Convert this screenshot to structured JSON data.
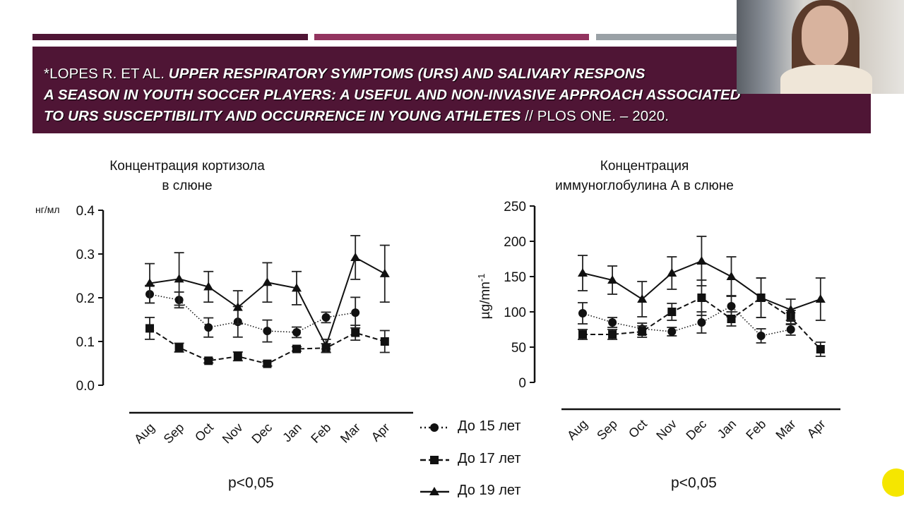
{
  "slide": {
    "accent_colors": [
      "#4f1535",
      "#92345f",
      "#9aa1a6"
    ],
    "citation": {
      "author": "*LOPES R. ET AL. ",
      "title_line1": "UPPER RESPIRATORY SYMPTOMS (URS) AND SALIVARY RESPONS",
      "title_line2": "A SEASON IN YOUTH SOCCER PLAYERS: A USEFUL AND NON-INVASIVE APPROACH ASSOCIATED",
      "title_line3": "TO URS SUSCEPTIBILITY AND OCCURRENCE IN YOUNG ATHLETES",
      "source": " // PLOS ONE. – 2020."
    },
    "left_title_1": "Концентрация кортизола",
    "left_title_2": "в слюне",
    "right_title_1": "Концентрация",
    "right_title_2": "иммуноглобулина А в слюне",
    "left_p": "p<0,05",
    "right_p": "p<0,05",
    "legend": [
      "До 15 лет",
      "До 17 лет",
      "До 19 лет"
    ]
  },
  "chart_data": [
    {
      "type": "line",
      "title": "Концентрация кортизола в слюне",
      "ylabel": "нг/мл",
      "ylim": [
        0,
        0.4
      ],
      "yticks": [
        "0.0",
        "0.1",
        "0.2",
        "0.3",
        "0.4"
      ],
      "categories": [
        "Aug",
        "Sep",
        "Oct",
        "Nov",
        "Dec",
        "Jan",
        "Feb",
        "Mar",
        "Apr"
      ],
      "series": [
        {
          "name": "До 15 лет",
          "marker": "circle",
          "values": [
            0.208,
            0.195,
            0.132,
            0.145,
            0.124,
            0.121,
            0.155,
            0.166,
            null
          ],
          "error": [
            0.02,
            0.018,
            0.022,
            0.035,
            0.025,
            0.012,
            0.012,
            0.035,
            null
          ]
        },
        {
          "name": "До 17 лет",
          "marker": "square",
          "values": [
            0.13,
            0.086,
            0.056,
            0.066,
            0.049,
            0.083,
            0.085,
            0.12,
            0.1
          ],
          "error": [
            0.025,
            0.01,
            0.005,
            0.01,
            0.005,
            0.005,
            0.01,
            0.017,
            0.025
          ]
        },
        {
          "name": "До 19 лет",
          "marker": "triangle",
          "values": [
            0.233,
            0.243,
            0.225,
            0.178,
            0.235,
            0.222,
            0.09,
            0.292,
            0.255
          ],
          "error": [
            0.045,
            0.06,
            0.035,
            0.038,
            0.045,
            0.038,
            0.015,
            0.05,
            0.065
          ]
        }
      ]
    },
    {
      "type": "line",
      "title": "Концентрация иммуноглобулина А в слюне",
      "ylabel": "µg/mn-1",
      "ylim": [
        0,
        250
      ],
      "yticks": [
        "0",
        "50",
        "100",
        "150",
        "200",
        "250"
      ],
      "categories": [
        "Aug",
        "Sep",
        "Oct",
        "Nov",
        "Dec",
        "Jan",
        "Feb",
        "Mar",
        "Apr"
      ],
      "series": [
        {
          "name": "До 15 лет",
          "marker": "circle",
          "values": [
            98,
            85,
            76,
            72,
            85,
            108,
            66,
            75,
            null
          ],
          "error": [
            15,
            7,
            8,
            6,
            15,
            15,
            10,
            8,
            null
          ]
        },
        {
          "name": "До 17 лет",
          "marker": "square",
          "values": [
            68,
            68,
            72,
            100,
            120,
            90,
            120,
            92,
            47
          ],
          "error": [
            7,
            7,
            8,
            12,
            25,
            10,
            28,
            10,
            10
          ]
        },
        {
          "name": "До 19 лет",
          "marker": "triangle",
          "values": [
            155,
            145,
            118,
            155,
            172,
            150,
            120,
            103,
            118
          ],
          "error": [
            25,
            20,
            25,
            23,
            35,
            28,
            28,
            15,
            30
          ]
        }
      ]
    }
  ]
}
